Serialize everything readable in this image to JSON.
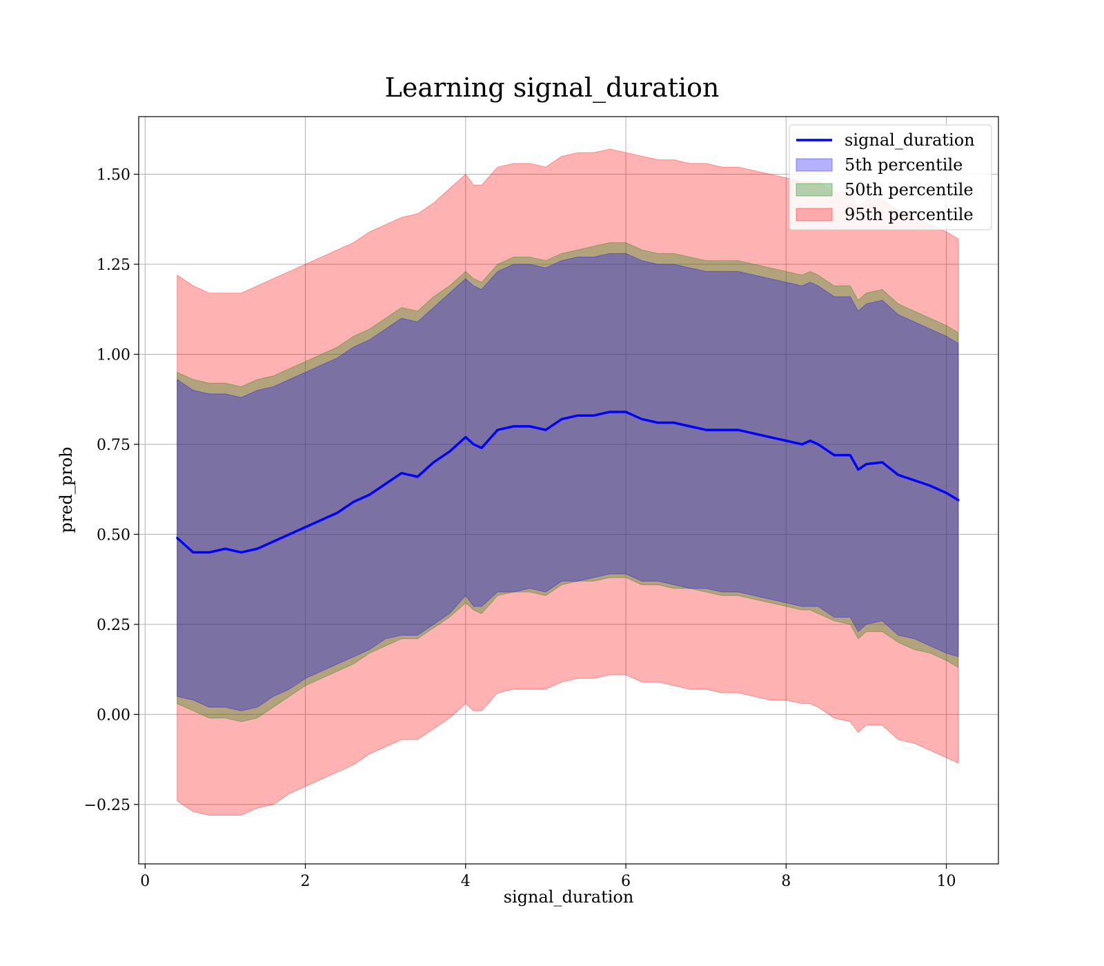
{
  "chart_data": {
    "type": "area",
    "title": "Learning signal_duration",
    "xlabel": "signal_duration",
    "ylabel": "pred_prob",
    "xlim": [
      -0.08,
      10.65
    ],
    "ylim": [
      -0.415,
      1.66
    ],
    "xticks": [
      0,
      2,
      4,
      6,
      8,
      10
    ],
    "xtick_labels": [
      "0",
      "2",
      "4",
      "6",
      "8",
      "10"
    ],
    "yticks": [
      -0.25,
      0,
      0.25,
      0.5,
      0.75,
      1.0,
      1.25,
      1.5
    ],
    "ytick_labels": [
      "−0.25",
      "0.00",
      "0.25",
      "0.50",
      "0.75",
      "1.00",
      "1.25",
      "1.50"
    ],
    "grid": true,
    "legend_position": "top-right",
    "x": [
      0.4,
      0.6,
      0.8,
      1.0,
      1.2,
      1.4,
      1.6,
      1.8,
      2.0,
      2.2,
      2.4,
      2.6,
      2.8,
      3.0,
      3.2,
      3.4,
      3.6,
      3.8,
      4.0,
      4.1,
      4.2,
      4.4,
      4.6,
      4.8,
      5.0,
      5.2,
      5.4,
      5.6,
      5.8,
      6.0,
      6.2,
      6.4,
      6.6,
      6.8,
      7.0,
      7.2,
      7.4,
      7.6,
      7.8,
      8.0,
      8.2,
      8.3,
      8.4,
      8.6,
      8.8,
      8.9,
      9.0,
      9.2,
      9.4,
      9.6,
      9.8,
      10.0,
      10.15
    ],
    "series": [
      {
        "name": "signal_duration",
        "kind": "line",
        "color": "#0000ff",
        "values": [
          0.49,
          0.45,
          0.45,
          0.46,
          0.45,
          0.46,
          0.48,
          0.5,
          0.52,
          0.54,
          0.56,
          0.59,
          0.61,
          0.64,
          0.67,
          0.66,
          0.7,
          0.73,
          0.77,
          0.75,
          0.74,
          0.79,
          0.8,
          0.8,
          0.79,
          0.82,
          0.83,
          0.83,
          0.84,
          0.84,
          0.82,
          0.81,
          0.81,
          0.8,
          0.79,
          0.79,
          0.79,
          0.78,
          0.77,
          0.76,
          0.75,
          0.76,
          0.75,
          0.72,
          0.72,
          0.68,
          0.695,
          0.7,
          0.665,
          0.65,
          0.635,
          0.615,
          0.595
        ]
      },
      {
        "name": "5th percentile",
        "kind": "band",
        "color": "#0000ff",
        "opacity": 0.3,
        "lower": [
          0.05,
          0.04,
          0.02,
          0.02,
          0.01,
          0.02,
          0.05,
          0.07,
          0.1,
          0.12,
          0.14,
          0.16,
          0.18,
          0.21,
          0.22,
          0.22,
          0.25,
          0.28,
          0.33,
          0.3,
          0.3,
          0.34,
          0.34,
          0.35,
          0.34,
          0.37,
          0.37,
          0.38,
          0.39,
          0.39,
          0.37,
          0.37,
          0.36,
          0.35,
          0.35,
          0.34,
          0.34,
          0.33,
          0.32,
          0.31,
          0.3,
          0.3,
          0.3,
          0.27,
          0.27,
          0.23,
          0.25,
          0.26,
          0.22,
          0.21,
          0.19,
          0.17,
          0.16
        ],
        "upper": [
          0.93,
          0.9,
          0.89,
          0.89,
          0.88,
          0.9,
          0.91,
          0.93,
          0.95,
          0.97,
          0.99,
          1.02,
          1.04,
          1.07,
          1.1,
          1.09,
          1.13,
          1.17,
          1.21,
          1.19,
          1.18,
          1.23,
          1.25,
          1.25,
          1.24,
          1.26,
          1.27,
          1.27,
          1.28,
          1.28,
          1.26,
          1.25,
          1.25,
          1.24,
          1.23,
          1.23,
          1.23,
          1.22,
          1.21,
          1.2,
          1.19,
          1.2,
          1.19,
          1.16,
          1.16,
          1.12,
          1.14,
          1.15,
          1.11,
          1.09,
          1.07,
          1.05,
          1.03
        ]
      },
      {
        "name": "50th percentile",
        "kind": "band",
        "color": "#008000",
        "opacity": 0.3,
        "lower": [
          0.03,
          0.01,
          -0.01,
          -0.01,
          -0.02,
          -0.01,
          0.02,
          0.05,
          0.08,
          0.1,
          0.12,
          0.14,
          0.17,
          0.19,
          0.21,
          0.21,
          0.24,
          0.27,
          0.31,
          0.29,
          0.28,
          0.33,
          0.34,
          0.34,
          0.33,
          0.36,
          0.37,
          0.37,
          0.38,
          0.38,
          0.36,
          0.36,
          0.35,
          0.35,
          0.34,
          0.33,
          0.33,
          0.32,
          0.31,
          0.3,
          0.29,
          0.29,
          0.28,
          0.26,
          0.25,
          0.21,
          0.23,
          0.23,
          0.2,
          0.18,
          0.17,
          0.15,
          0.13
        ],
        "upper": [
          0.95,
          0.93,
          0.92,
          0.92,
          0.91,
          0.93,
          0.94,
          0.96,
          0.98,
          1.0,
          1.02,
          1.05,
          1.07,
          1.1,
          1.13,
          1.12,
          1.16,
          1.19,
          1.23,
          1.21,
          1.2,
          1.25,
          1.27,
          1.27,
          1.26,
          1.28,
          1.29,
          1.3,
          1.31,
          1.31,
          1.29,
          1.28,
          1.28,
          1.27,
          1.26,
          1.26,
          1.26,
          1.25,
          1.24,
          1.23,
          1.22,
          1.23,
          1.22,
          1.19,
          1.19,
          1.15,
          1.17,
          1.18,
          1.14,
          1.12,
          1.1,
          1.08,
          1.06
        ]
      },
      {
        "name": "95th percentile",
        "kind": "band",
        "color": "#ff0000",
        "opacity": 0.3,
        "lower": [
          -0.24,
          -0.27,
          -0.28,
          -0.28,
          -0.28,
          -0.26,
          -0.25,
          -0.22,
          -0.2,
          -0.18,
          -0.16,
          -0.14,
          -0.11,
          -0.09,
          -0.07,
          -0.07,
          -0.04,
          -0.01,
          0.03,
          0.01,
          0.01,
          0.06,
          0.07,
          0.07,
          0.07,
          0.09,
          0.1,
          0.1,
          0.11,
          0.11,
          0.09,
          0.09,
          0.08,
          0.07,
          0.07,
          0.06,
          0.06,
          0.05,
          0.04,
          0.04,
          0.03,
          0.03,
          0.02,
          -0.01,
          -0.02,
          -0.05,
          -0.03,
          -0.03,
          -0.07,
          -0.08,
          -0.1,
          -0.12,
          -0.135
        ],
        "upper": [
          1.22,
          1.19,
          1.17,
          1.17,
          1.17,
          1.19,
          1.21,
          1.23,
          1.25,
          1.27,
          1.29,
          1.31,
          1.34,
          1.36,
          1.38,
          1.39,
          1.42,
          1.46,
          1.5,
          1.47,
          1.47,
          1.52,
          1.53,
          1.53,
          1.52,
          1.55,
          1.56,
          1.56,
          1.57,
          1.56,
          1.55,
          1.54,
          1.54,
          1.53,
          1.53,
          1.52,
          1.52,
          1.51,
          1.5,
          1.49,
          1.48,
          1.48,
          1.48,
          1.45,
          1.45,
          1.41,
          1.43,
          1.43,
          1.4,
          1.38,
          1.36,
          1.34,
          1.32
        ]
      }
    ]
  }
}
